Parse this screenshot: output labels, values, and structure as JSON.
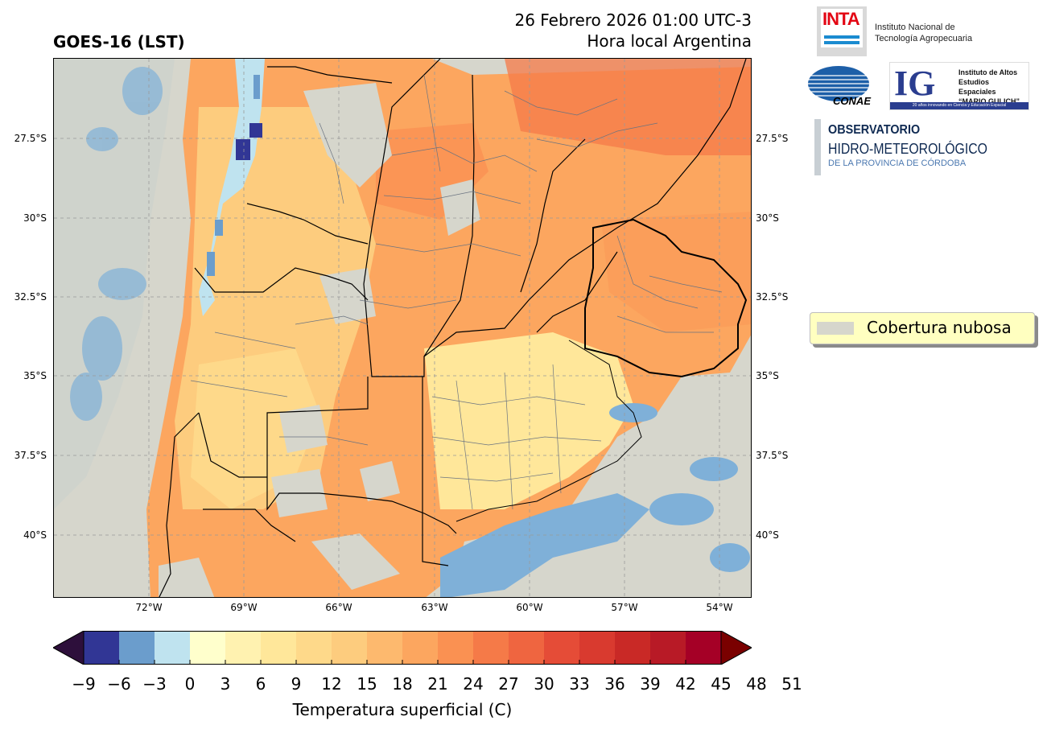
{
  "header": {
    "product_title": "GOES-16 (LST)",
    "date_line": "26 Febrero 2026 01:00 UTC-3",
    "tz_line": "Hora local Argentina"
  },
  "map": {
    "lat_labels": [
      "27.5°S",
      "30°S",
      "32.5°S",
      "35°S",
      "37.5°S",
      "40°S"
    ],
    "lon_labels": [
      "72°W",
      "69°W",
      "66°W",
      "63°W",
      "60°W",
      "57°W",
      "54°W"
    ]
  },
  "legend": {
    "cloud_label": "Cobertura nubosa",
    "cloud_color": "#d6d6cc"
  },
  "colorbar": {
    "title": "Temperatura superficial (C)",
    "ticks": [
      "−9",
      "−6",
      "−3",
      "0",
      "3",
      "6",
      "9",
      "12",
      "15",
      "18",
      "21",
      "24",
      "27",
      "30",
      "33",
      "36",
      "39",
      "42",
      "45",
      "48",
      "51"
    ],
    "under_color": "#2d0f3b",
    "over_color": "#7a0000",
    "colors": [
      "#313695",
      "#6b9dcc",
      "#bfe3ef",
      "#ffffcc",
      "#fff2b0",
      "#ffe79a",
      "#fed98a",
      "#fdcc7e",
      "#fdb96e",
      "#fca65f",
      "#fa9152",
      "#f57a48",
      "#ef6540",
      "#e54c37",
      "#d93a2f",
      "#c92926",
      "#b81a26",
      "#a50026"
    ]
  },
  "logos": {
    "inta_short": "INTA",
    "inta_name_1": "Instituto Nacional de",
    "inta_name_2": "Tecnología Agropecuaria",
    "conae": "CONAE",
    "ig_short": "IG",
    "ig_1": "Instituto de Altos",
    "ig_2": "Estudios Espaciales",
    "ig_3": "“MARIO GULICH”",
    "ig_foot": "20 años innovando en Ciencia y Educación Espacial",
    "obs_1": "OBSERVATORIO",
    "obs_2": "HIDRO-METEOROLÓGICO",
    "obs_3": "DE LA PROVINCIA DE CÓRDOBA"
  }
}
